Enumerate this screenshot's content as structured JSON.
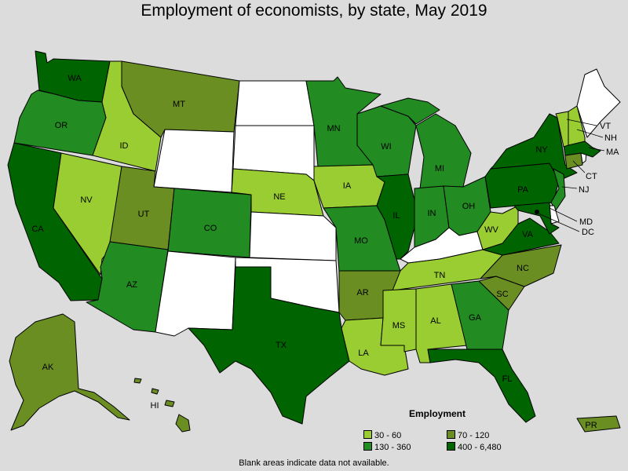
{
  "title": "Employment of economists, by state, May 2019",
  "note": "Blank areas indicate data not available.",
  "legend": {
    "title": "Employment",
    "items": [
      {
        "label": "30 - 60",
        "color": "#9acd32"
      },
      {
        "label": "70 - 120",
        "color": "#6b8e23"
      },
      {
        "label": "130 - 360",
        "color": "#228b22"
      },
      {
        "label": "400 - 6,480",
        "color": "#006400"
      }
    ]
  },
  "states": {
    "WA": {
      "label": "WA",
      "class": "400 - 6,480"
    },
    "OR": {
      "label": "OR",
      "class": "130 - 360"
    },
    "CA": {
      "label": "CA",
      "class": "400 - 6,480"
    },
    "ID": {
      "label": "ID",
      "class": "30 - 60"
    },
    "NV": {
      "label": "NV",
      "class": "30 - 60"
    },
    "MT": {
      "label": "MT",
      "class": "70 - 120"
    },
    "UT": {
      "label": "UT",
      "class": "70 - 120"
    },
    "AZ": {
      "label": "AZ",
      "class": "130 - 360"
    },
    "CO": {
      "label": "CO",
      "class": "130 - 360"
    },
    "NE": {
      "label": "NE",
      "class": "30 - 60"
    },
    "MN": {
      "label": "MN",
      "class": "130 - 360"
    },
    "IA": {
      "label": "IA",
      "class": "30 - 60"
    },
    "MO": {
      "label": "MO",
      "class": "130 - 360"
    },
    "AR": {
      "label": "AR",
      "class": "70 - 120"
    },
    "LA": {
      "label": "LA",
      "class": "30 - 60"
    },
    "TX": {
      "label": "TX",
      "class": "400 - 6,480"
    },
    "WI": {
      "label": "WI",
      "class": "130 - 360"
    },
    "IL": {
      "label": "IL",
      "class": "400 - 6,480"
    },
    "MI": {
      "label": "MI",
      "class": "130 - 360"
    },
    "IN": {
      "label": "IN",
      "class": "130 - 360"
    },
    "OH": {
      "label": "OH",
      "class": "130 - 360"
    },
    "TN": {
      "label": "TN",
      "class": "30 - 60"
    },
    "MS": {
      "label": "MS",
      "class": "30 - 60"
    },
    "AL": {
      "label": "AL",
      "class": "30 - 60"
    },
    "GA": {
      "label": "GA",
      "class": "130 - 360"
    },
    "FL": {
      "label": "FL",
      "class": "400 - 6,480"
    },
    "SC": {
      "label": "SC",
      "class": "70 - 120"
    },
    "NC": {
      "label": "NC",
      "class": "70 - 120"
    },
    "VA": {
      "label": "VA",
      "class": "400 - 6,480"
    },
    "WV": {
      "label": "WV",
      "class": "30 - 60"
    },
    "PA": {
      "label": "PA",
      "class": "400 - 6,480"
    },
    "NY": {
      "label": "NY",
      "class": "400 - 6,480"
    },
    "VT": {
      "label": "VT",
      "class": "30 - 60"
    },
    "NH": {
      "label": "NH",
      "class": "30 - 60"
    },
    "MA": {
      "label": "MA",
      "class": "400 - 6,480"
    },
    "CT": {
      "label": "CT",
      "class": "70 - 120"
    },
    "NJ": {
      "label": "NJ",
      "class": "130 - 360"
    },
    "MD": {
      "label": "MD",
      "class": "400 - 6,480"
    },
    "DC": {
      "label": "DC",
      "class": "400 - 6,480"
    },
    "AK": {
      "label": "AK",
      "class": "70 - 120"
    },
    "HI": {
      "label": "HI",
      "class": "70 - 120"
    },
    "PR": {
      "label": "PR",
      "class": "70 - 120"
    },
    "ND": {
      "label": "",
      "class": "none"
    },
    "SD": {
      "label": "",
      "class": "none"
    },
    "WY": {
      "label": "",
      "class": "none"
    },
    "KS": {
      "label": "",
      "class": "none"
    },
    "OK": {
      "label": "",
      "class": "none"
    },
    "NM": {
      "label": "",
      "class": "none"
    },
    "KY": {
      "label": "",
      "class": "none"
    },
    "ME": {
      "label": "",
      "class": "none"
    },
    "RI": {
      "label": "",
      "class": "none"
    },
    "DE": {
      "label": "",
      "class": "none"
    }
  },
  "colors": {
    "none": "#ffffff",
    "border": "#000000",
    "background": "#dcdcdc"
  }
}
